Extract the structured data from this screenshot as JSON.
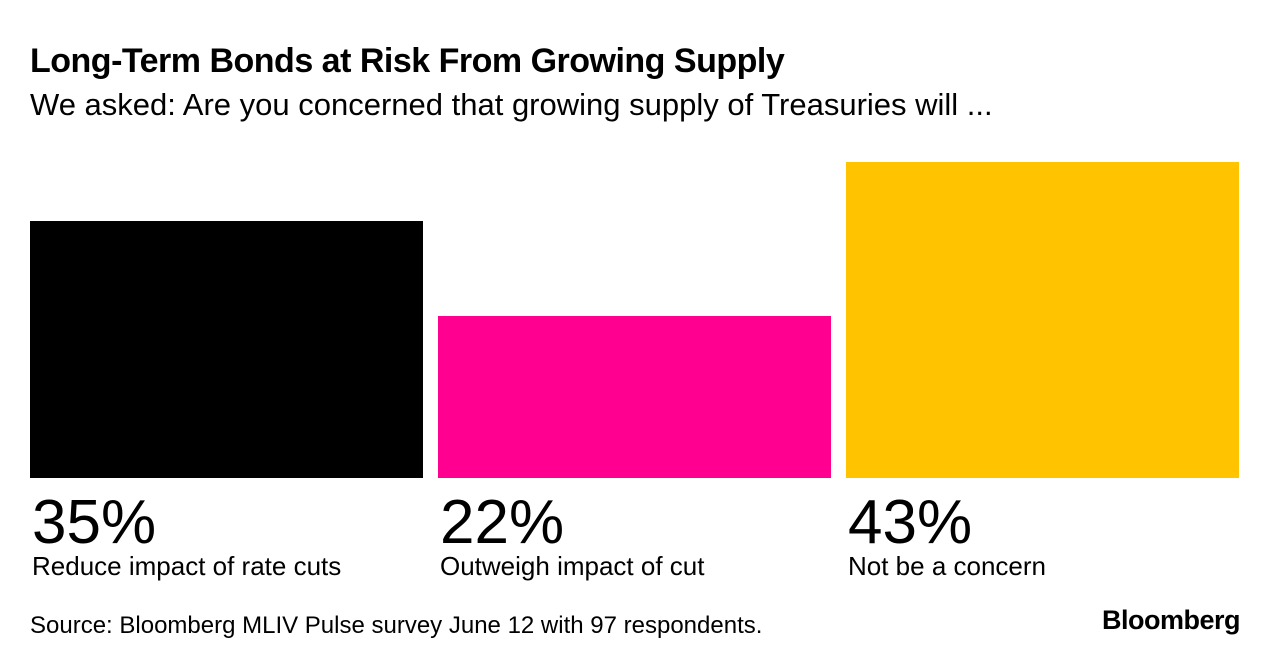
{
  "chart_data": {
    "type": "bar",
    "title": "Long-Term Bonds at Risk From Growing Supply",
    "subtitle": "We asked: Are you concerned that growing supply of Treasuries will ...",
    "categories": [
      "Reduce impact of rate cuts",
      "Outweigh impact of cut",
      "Not be a concern"
    ],
    "values": [
      35,
      22,
      43
    ],
    "value_labels": [
      "35%",
      "22%",
      "43%"
    ],
    "colors": [
      "#000000",
      "#ff0090",
      "#ffc300"
    ],
    "unit": "%",
    "ylim": [
      0,
      43
    ]
  },
  "source": "Source: Bloomberg MLIV Pulse survey June 12 with 97 respondents.",
  "brand": "Bloomberg"
}
